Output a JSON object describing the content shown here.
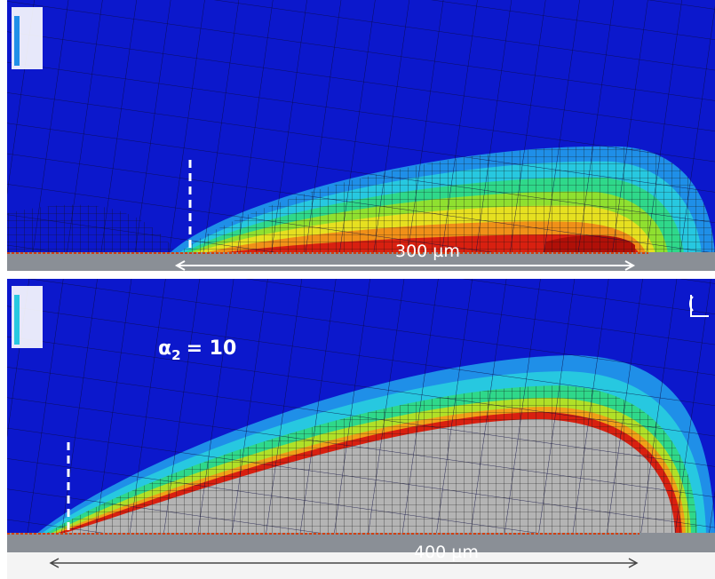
{
  "panels": [
    {
      "dimension": "300 µm"
    },
    {
      "label": {
        "symbol": "α",
        "subscript": "2",
        "rest": "= 10"
      },
      "dimension": "400 µm"
    }
  ]
}
